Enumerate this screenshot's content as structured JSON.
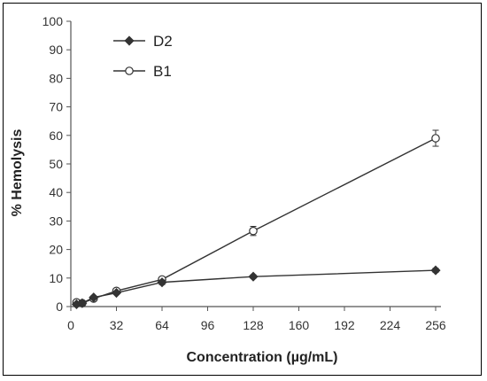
{
  "chart_data": {
    "type": "line",
    "title": "",
    "xlabel": "Concentration (µg/mL)",
    "ylabel": "% Hemolysis",
    "xlim": [
      0,
      256
    ],
    "ylim": [
      0,
      100
    ],
    "xticks": [
      0,
      32,
      64,
      96,
      128,
      160,
      192,
      224,
      256
    ],
    "yticks": [
      0,
      10,
      20,
      30,
      40,
      50,
      60,
      70,
      80,
      90,
      100
    ],
    "grid": false,
    "legend_position": "top-left",
    "series": [
      {
        "name": "D2",
        "marker": "diamond-filled",
        "color": "#333333",
        "x": [
          4,
          8,
          16,
          32,
          64,
          128,
          256
        ],
        "y": [
          0.8,
          1.2,
          3.2,
          4.8,
          8.5,
          10.5,
          12.7
        ],
        "error": [
          0.3,
          0.3,
          0.5,
          0.5,
          0.8,
          0.6,
          0.7
        ]
      },
      {
        "name": "B1",
        "marker": "circle-open",
        "color": "#333333",
        "x": [
          4,
          8,
          16,
          32,
          64,
          128,
          256
        ],
        "y": [
          1.5,
          1.2,
          2.8,
          5.5,
          9.5,
          26.5,
          59.0
        ],
        "error": [
          0.3,
          0.3,
          0.5,
          0.6,
          0.8,
          1.6,
          2.8
        ]
      }
    ]
  }
}
